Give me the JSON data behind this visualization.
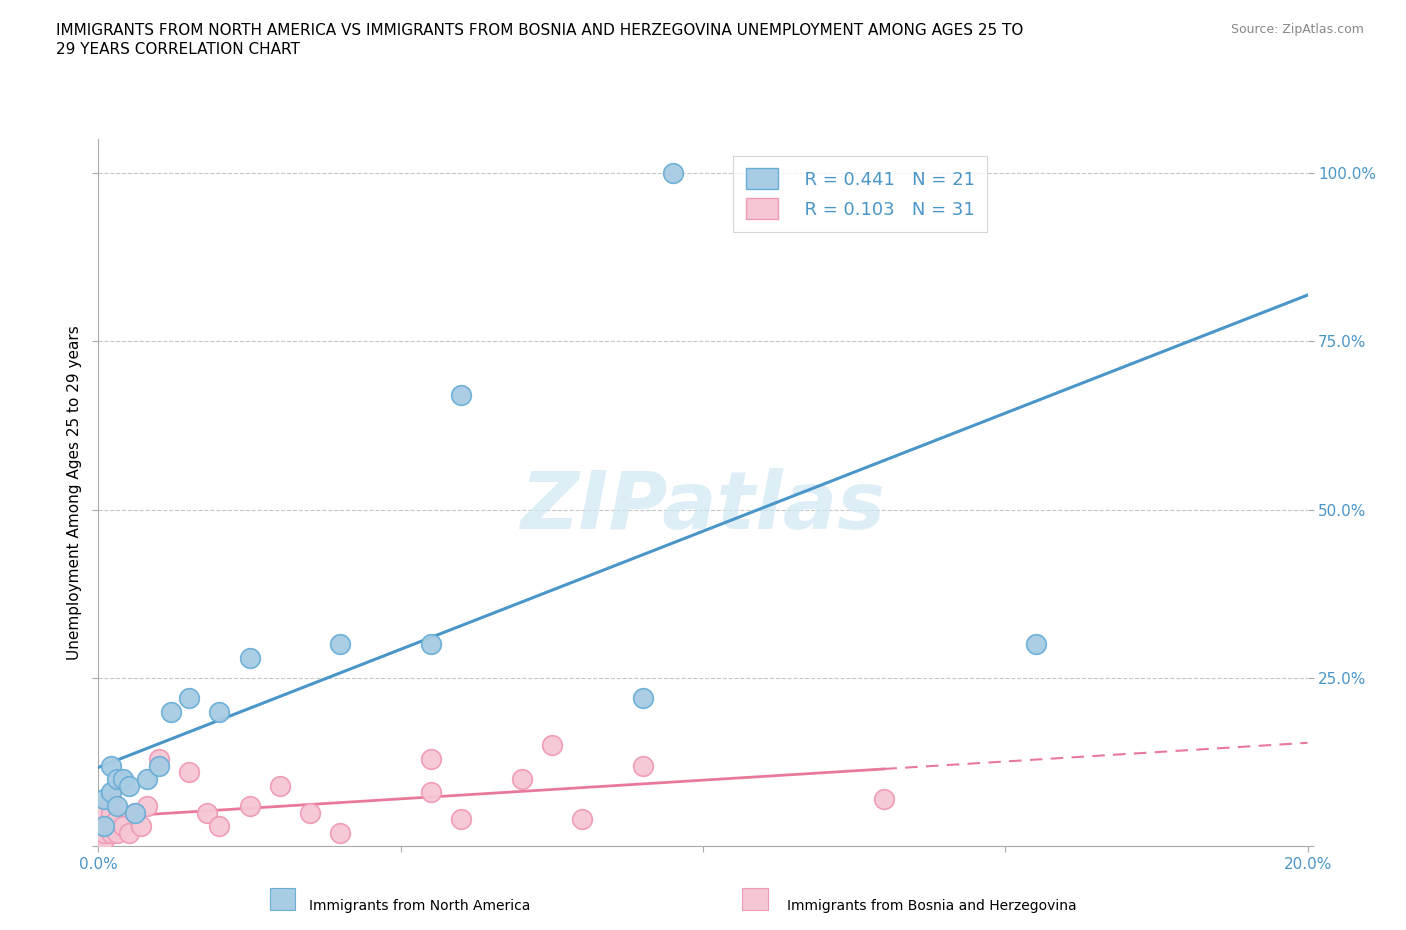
{
  "title_line1": "IMMIGRANTS FROM NORTH AMERICA VS IMMIGRANTS FROM BOSNIA AND HERZEGOVINA UNEMPLOYMENT AMONG AGES 25 TO",
  "title_line2": "29 YEARS CORRELATION CHART",
  "source_text": "Source: ZipAtlas.com",
  "ylabel": "Unemployment Among Ages 25 to 29 years",
  "xlim": [
    0.0,
    0.2
  ],
  "ylim": [
    0.0,
    1.05
  ],
  "blue_color": "#a8cce4",
  "pink_color": "#f5c6d4",
  "blue_edge_color": "#6aaed6",
  "pink_edge_color": "#f09ab5",
  "blue_line_color": "#4a96c8",
  "pink_line_color": "#e8799a",
  "watermark": "ZIPatlas",
  "legend_label1": "  R = 0.441   N = 21",
  "legend_label2": "  R = 0.103   N = 31",
  "north_america_x": [
    0.001,
    0.001,
    0.002,
    0.002,
    0.003,
    0.003,
    0.004,
    0.005,
    0.006,
    0.008,
    0.01,
    0.012,
    0.015,
    0.02,
    0.025,
    0.04,
    0.055,
    0.06,
    0.09,
    0.095,
    0.155
  ],
  "north_america_y": [
    0.03,
    0.07,
    0.08,
    0.12,
    0.06,
    0.1,
    0.1,
    0.09,
    0.05,
    0.1,
    0.12,
    0.2,
    0.22,
    0.2,
    0.28,
    0.3,
    0.3,
    0.67,
    0.22,
    1.0,
    0.3
  ],
  "bosnia_x": [
    0.001,
    0.001,
    0.001,
    0.001,
    0.002,
    0.002,
    0.002,
    0.002,
    0.003,
    0.003,
    0.004,
    0.005,
    0.006,
    0.007,
    0.008,
    0.01,
    0.015,
    0.018,
    0.02,
    0.025,
    0.03,
    0.035,
    0.04,
    0.055,
    0.055,
    0.06,
    0.07,
    0.075,
    0.08,
    0.09,
    0.13
  ],
  "bosnia_y": [
    0.01,
    0.02,
    0.03,
    0.05,
    0.02,
    0.03,
    0.05,
    0.07,
    0.02,
    0.04,
    0.03,
    0.02,
    0.05,
    0.03,
    0.06,
    0.13,
    0.11,
    0.05,
    0.03,
    0.06,
    0.09,
    0.05,
    0.02,
    0.13,
    0.08,
    0.04,
    0.1,
    0.15,
    0.04,
    0.12,
    0.07
  ],
  "background_color": "#ffffff",
  "grid_color": "#c8c8c8",
  "tick_color": "#4a96c8"
}
